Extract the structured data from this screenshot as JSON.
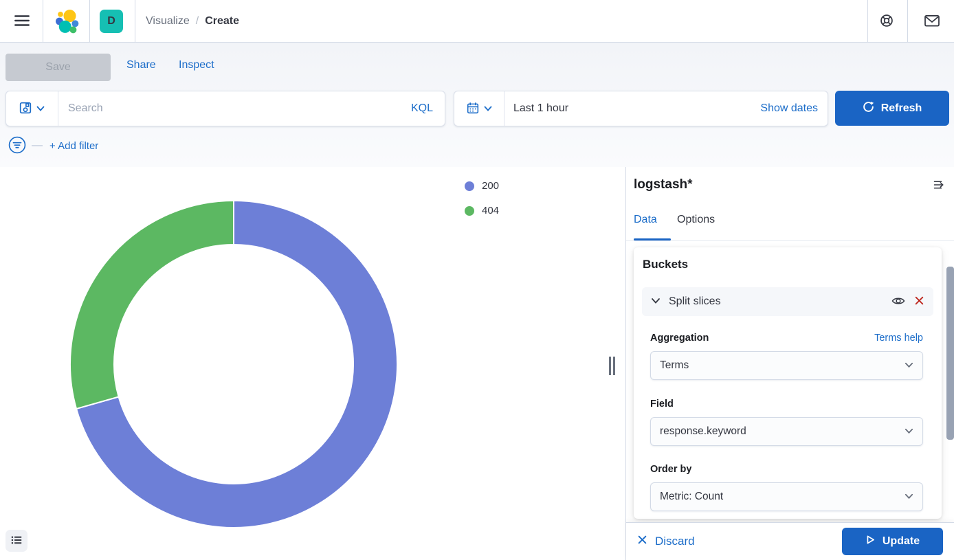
{
  "header": {
    "space_badge": "D",
    "breadcrumb": {
      "parent": "Visualize",
      "separator": "/",
      "current": "Create"
    }
  },
  "toolbar": {
    "save_label": "Save",
    "share_label": "Share",
    "inspect_label": "Inspect"
  },
  "query_bar": {
    "search_placeholder": "Search",
    "language_label": "KQL",
    "time_range_value": "Last 1 hour",
    "show_dates_label": "Show dates",
    "refresh_label": "Refresh"
  },
  "filter_bar": {
    "add_filter_label": "+ Add filter"
  },
  "chart_data": {
    "type": "pie",
    "subtype": "donut",
    "categories": [
      "200",
      "404"
    ],
    "values_percent": [
      70.6,
      29.4
    ],
    "colors": [
      "#6d7fd7",
      "#5cb862"
    ],
    "legend_position": "top-right",
    "start_angle_deg": 0,
    "clockwise": true,
    "inner_radius_ratio": 0.73
  },
  "editor": {
    "index_pattern": "logstash*",
    "tabs": {
      "data": "Data",
      "options": "Options"
    },
    "buckets": {
      "heading": "Buckets",
      "split_slices_label": "Split slices",
      "aggregation_label": "Aggregation",
      "terms_help_label": "Terms help",
      "aggregation_value": "Terms",
      "field_label": "Field",
      "field_value": "response.keyword",
      "order_by_label": "Order by",
      "order_by_value": "Metric: Count"
    },
    "footer": {
      "discard_label": "Discard",
      "update_label": "Update"
    }
  }
}
